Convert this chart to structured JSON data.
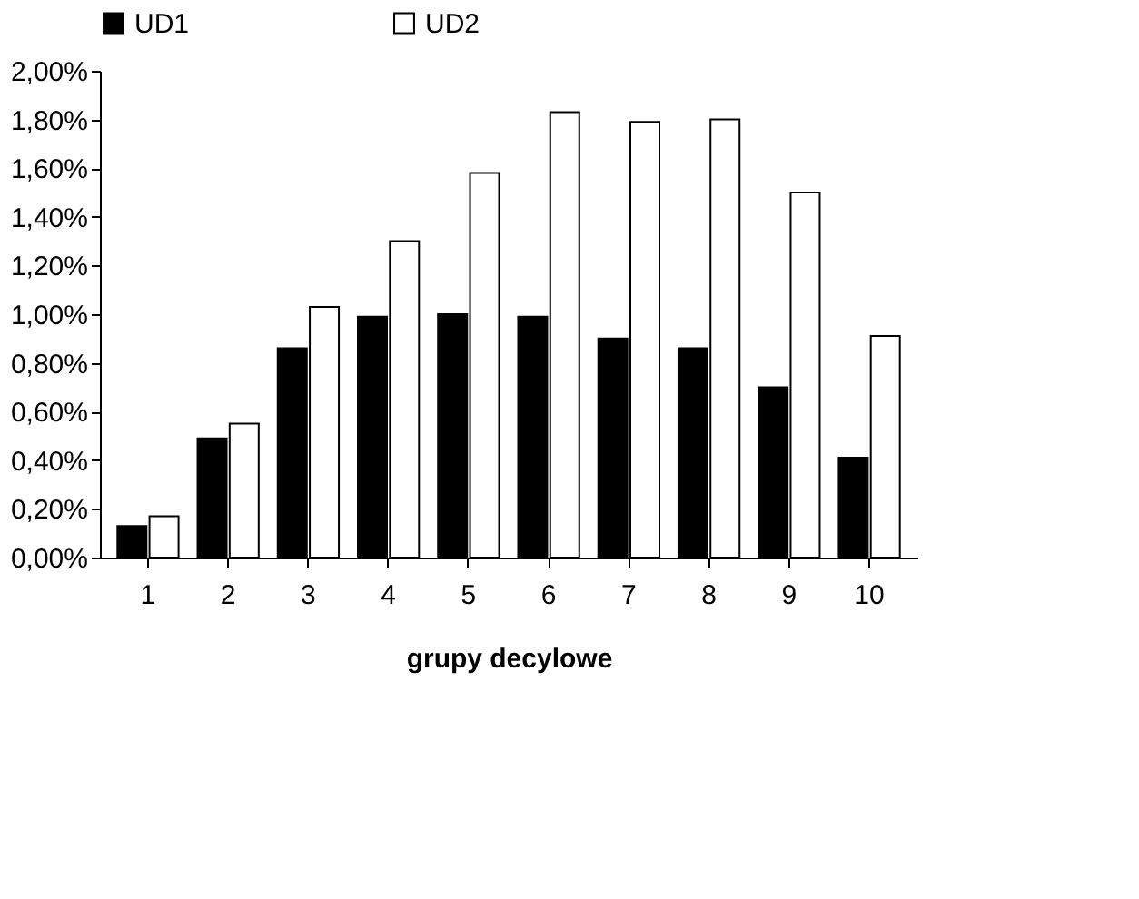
{
  "chart_data": {
    "type": "bar",
    "xlabel": "grupy decylowe",
    "categories": [
      "1",
      "2",
      "3",
      "4",
      "5",
      "6",
      "7",
      "8",
      "9",
      "10"
    ],
    "series": [
      {
        "name": "UD1",
        "color": "#000000",
        "values": [
          0.13,
          0.49,
          0.86,
          0.99,
          1.0,
          0.99,
          0.9,
          0.86,
          0.7,
          0.41
        ]
      },
      {
        "name": "UD2",
        "color": "#ffffff",
        "values": [
          0.17,
          0.55,
          1.03,
          1.3,
          1.58,
          1.83,
          1.79,
          1.8,
          1.5,
          0.91
        ]
      }
    ],
    "ylim": [
      0,
      2
    ],
    "yticks": [
      {
        "value": 0,
        "label": "0,00%"
      },
      {
        "value": 0.2,
        "label": "0,20%"
      },
      {
        "value": 0.4,
        "label": "0,40%"
      },
      {
        "value": 0.6,
        "label": "0,60%"
      },
      {
        "value": 0.8,
        "label": "0,80%"
      },
      {
        "value": 1.0,
        "label": "1,00%"
      },
      {
        "value": 1.2,
        "label": "1,20%"
      },
      {
        "value": 1.4,
        "label": "1,40%"
      },
      {
        "value": 1.6,
        "label": "1,60%"
      },
      {
        "value": 1.8,
        "label": "1,80%"
      },
      {
        "value": 2.0,
        "label": "2,00%"
      }
    ],
    "legend": "top",
    "grid": false
  }
}
